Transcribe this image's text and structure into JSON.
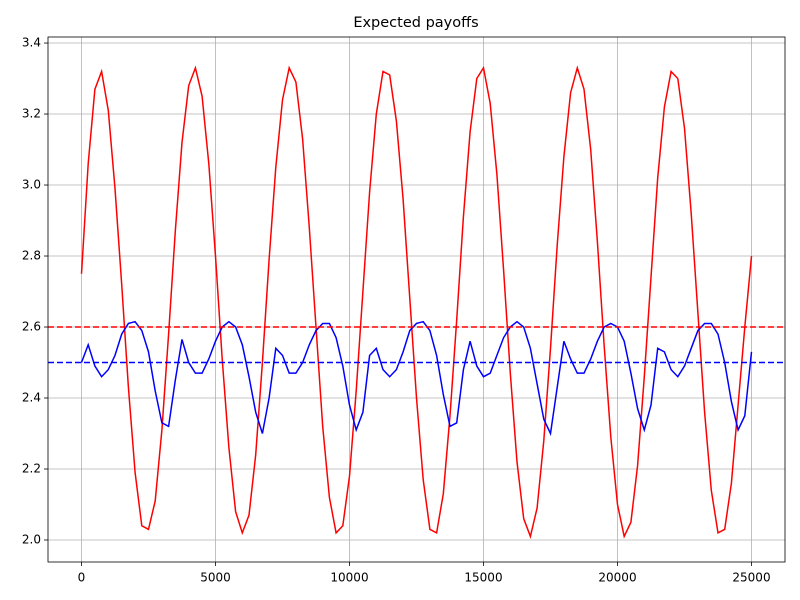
{
  "chart_data": {
    "type": "line",
    "title": "Expected payoffs",
    "x": [
      0,
      250,
      500,
      750,
      1000,
      1250,
      1500,
      1750,
      2000,
      2250,
      2500,
      2750,
      3000,
      3250,
      3500,
      3750,
      4000,
      4250,
      4500,
      4750,
      5000,
      5250,
      5500,
      5750,
      6000,
      6250,
      6500,
      6750,
      7000,
      7250,
      7500,
      7750,
      8000,
      8250,
      8500,
      8750,
      9000,
      9250,
      9500,
      9750,
      10000,
      10250,
      10500,
      10750,
      11000,
      11250,
      11500,
      11750,
      12000,
      12250,
      12500,
      12750,
      13000,
      13250,
      13500,
      13750,
      14000,
      14250,
      14500,
      14750,
      15000,
      15250,
      15500,
      15750,
      16000,
      16250,
      16500,
      16750,
      17000,
      17250,
      17500,
      17750,
      18000,
      18250,
      18500,
      18750,
      19000,
      19250,
      19500,
      19750,
      20000,
      20250,
      20500,
      20750,
      21000,
      21250,
      21500,
      21750,
      22000,
      22250,
      22500,
      22750,
      23000,
      23250,
      23500,
      23750,
      24000,
      24250,
      24500,
      24750,
      25000
    ],
    "series": [
      {
        "color": "#ff0000",
        "values": [
          2.75,
          3.06,
          3.27,
          3.32,
          3.21,
          2.99,
          2.72,
          2.43,
          2.19,
          2.04,
          2.03,
          2.11,
          2.31,
          2.58,
          2.87,
          3.12,
          3.28,
          3.33,
          3.25,
          3.06,
          2.8,
          2.51,
          2.26,
          2.08,
          2.02,
          2.07,
          2.24,
          2.5,
          2.79,
          3.05,
          3.24,
          3.33,
          3.29,
          3.13,
          2.88,
          2.6,
          2.32,
          2.12,
          2.02,
          2.04,
          2.18,
          2.42,
          2.7,
          2.98,
          3.2,
          3.32,
          3.31,
          3.18,
          2.96,
          2.68,
          2.4,
          2.17,
          2.03,
          2.02,
          2.13,
          2.35,
          2.62,
          2.91,
          3.15,
          3.3,
          3.33,
          3.23,
          3.03,
          2.76,
          2.47,
          2.22,
          2.06,
          2.01,
          2.09,
          2.28,
          2.54,
          2.83,
          3.08,
          3.26,
          3.33,
          3.27,
          3.1,
          2.84,
          2.55,
          2.29,
          2.1,
          2.01,
          2.05,
          2.21,
          2.46,
          2.74,
          3.02,
          3.22,
          3.32,
          3.3,
          3.16,
          2.92,
          2.64,
          2.36,
          2.14,
          2.02,
          2.03,
          2.16,
          2.38,
          2.6,
          2.8
        ]
      },
      {
        "color": "#0000ff",
        "values": [
          2.5,
          2.55,
          2.49,
          2.46,
          2.48,
          2.52,
          2.58,
          2.61,
          2.615,
          2.59,
          2.53,
          2.42,
          2.33,
          2.32,
          2.45,
          2.565,
          2.5,
          2.47,
          2.47,
          2.51,
          2.56,
          2.6,
          2.615,
          2.6,
          2.55,
          2.46,
          2.36,
          2.3,
          2.4,
          2.54,
          2.52,
          2.47,
          2.47,
          2.5,
          2.55,
          2.59,
          2.61,
          2.61,
          2.57,
          2.49,
          2.38,
          2.31,
          2.36,
          2.52,
          2.54,
          2.48,
          2.46,
          2.48,
          2.53,
          2.59,
          2.61,
          2.615,
          2.59,
          2.52,
          2.41,
          2.32,
          2.33,
          2.48,
          2.56,
          2.49,
          2.46,
          2.47,
          2.52,
          2.57,
          2.6,
          2.615,
          2.6,
          2.54,
          2.44,
          2.34,
          2.3,
          2.43,
          2.56,
          2.51,
          2.47,
          2.47,
          2.51,
          2.56,
          2.6,
          2.61,
          2.6,
          2.56,
          2.47,
          2.37,
          2.31,
          2.38,
          2.54,
          2.53,
          2.48,
          2.46,
          2.49,
          2.54,
          2.59,
          2.61,
          2.61,
          2.58,
          2.5,
          2.39,
          2.31,
          2.35,
          2.53
        ]
      }
    ],
    "hlines": [
      {
        "value": 2.6,
        "color": "#ff0000"
      },
      {
        "value": 2.5,
        "color": "#0000ff"
      }
    ],
    "xlim": [
      -1250,
      26250
    ],
    "xticks": [
      0,
      5000,
      10000,
      15000,
      20000,
      25000
    ],
    "ylim": [
      1.938,
      3.417
    ],
    "yticks": [
      {
        "value": 2,
        "label": "2.0"
      },
      2.2,
      2.4,
      2.6,
      2.8,
      {
        "value": 3,
        "label": "3.0"
      },
      3.2,
      3.4
    ],
    "grid": true
  }
}
